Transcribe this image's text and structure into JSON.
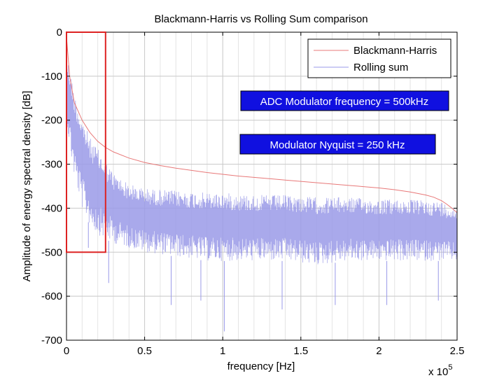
{
  "chart_data": {
    "type": "line",
    "title": "Blackmann-Harris vs Rolling Sum comparison",
    "xlabel": "frequency [Hz]",
    "ylabel": "Amplitude of energy spectral density [dB]",
    "x_multiplier_label": "x 10",
    "x_multiplier_exponent": "5",
    "xlim": [
      0,
      2.5
    ],
    "ylim": [
      -700,
      0
    ],
    "xticks": [
      0,
      0.5,
      1,
      1.5,
      2,
      2.5
    ],
    "xtick_labels": [
      "0",
      "0.5",
      "1",
      "1.5",
      "2",
      "2.5"
    ],
    "yticks": [
      0,
      -100,
      -200,
      -300,
      -400,
      -500,
      -600,
      -700
    ],
    "ytick_labels": [
      "0",
      "-100",
      "-200",
      "-300",
      "-400",
      "-500",
      "-600",
      "-700"
    ],
    "grid": true,
    "legend_position": "top-right",
    "series": [
      {
        "name": "Blackmann-Harris",
        "color": "#e87878",
        "x": [
          0,
          0.02,
          0.05,
          0.1,
          0.15,
          0.2,
          0.25,
          0.3,
          0.4,
          0.5,
          0.6,
          0.7,
          0.8,
          0.9,
          1.0,
          1.1,
          1.2,
          1.3,
          1.4,
          1.5,
          1.6,
          1.7,
          1.8,
          1.9,
          2.0,
          2.1,
          2.2,
          2.3,
          2.35,
          2.4,
          2.43,
          2.46,
          2.48,
          2.5
        ],
        "y": [
          -10,
          -100,
          -160,
          -200,
          -228,
          -248,
          -262,
          -272,
          -286,
          -296,
          -303,
          -309,
          -314,
          -319,
          -323,
          -327,
          -330,
          -333,
          -336,
          -339,
          -342,
          -345,
          -348,
          -351,
          -354,
          -358,
          -363,
          -370,
          -375,
          -383,
          -390,
          -398,
          -404,
          -410
        ]
      },
      {
        "name": "Rolling sum",
        "color": "#9a9ae8",
        "upper": {
          "x": [
            0,
            0.02,
            0.05,
            0.1,
            0.15,
            0.2,
            0.3,
            0.4,
            0.5,
            0.7,
            0.9,
            1.0,
            1.2,
            1.4,
            1.6,
            1.8,
            2.0,
            2.2,
            2.4,
            2.5
          ],
          "y": [
            -55,
            -80,
            -140,
            -195,
            -240,
            -265,
            -320,
            -345,
            -355,
            -360,
            -365,
            -365,
            -370,
            -370,
            -375,
            -375,
            -380,
            -380,
            -385,
            -400
          ]
        },
        "lower": {
          "x": [
            0,
            0.02,
            0.05,
            0.1,
            0.15,
            0.2,
            0.3,
            0.4,
            0.5,
            0.7,
            0.9,
            1.0,
            1.2,
            1.4,
            1.6,
            1.8,
            2.0,
            2.2,
            2.4,
            2.5
          ],
          "y": [
            -200,
            -260,
            -330,
            -400,
            -440,
            -460,
            -480,
            -490,
            -500,
            -510,
            -520,
            -520,
            -520,
            -520,
            -530,
            -520,
            -520,
            -520,
            -520,
            -520
          ]
        },
        "deep_dips": {
          "x": [
            0.14,
            0.27,
            0.67,
            0.86,
            1.01,
            1.38,
            1.72,
            2.05,
            2.38
          ],
          "y": [
            -490,
            -570,
            -620,
            -610,
            -680,
            -630,
            -620,
            -620,
            -610
          ]
        }
      }
    ],
    "annotations": [
      {
        "text": "ADC Modulator frequency = 500kHz",
        "box_color": "#1010e0",
        "text_color": "#ffffff"
      },
      {
        "text": "Modulator Nyquist = 250 kHz",
        "box_color": "#1010e0",
        "text_color": "#ffffff"
      }
    ],
    "highlight_box": {
      "x": [
        0,
        0.25
      ],
      "y": [
        -500,
        0
      ],
      "color": "#dd2222"
    }
  }
}
